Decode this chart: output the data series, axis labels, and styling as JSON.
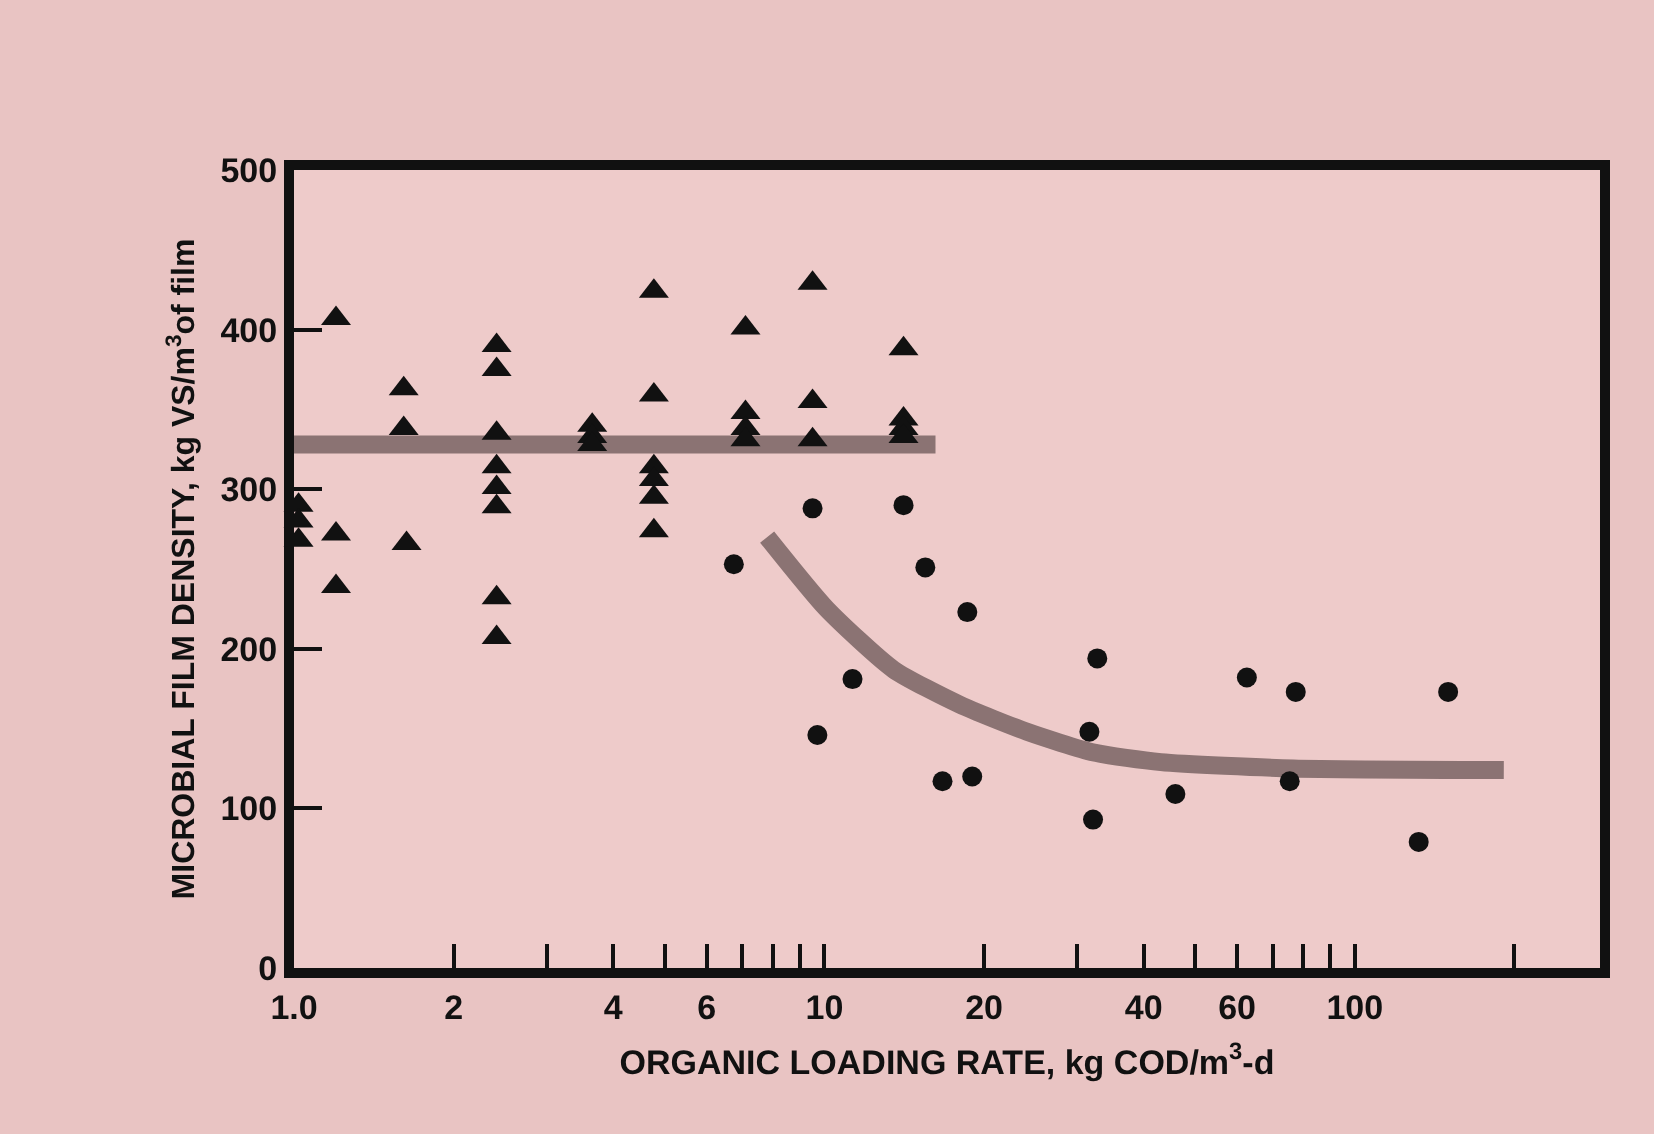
{
  "chart_data": {
    "type": "scatter",
    "xlabel": "ORGANIC LOADING RATE, kg COD/m$^{3}$-d",
    "ylabel": "MICROBIAL FILM DENSITY, kg VS/m$^{3}$of film",
    "log": "x",
    "grid": false,
    "xlim": [
      1,
      290
    ],
    "xticks": [
      {
        "value": 1,
        "label": "1.0"
      },
      2,
      {
        "value": 3,
        "label": null
      },
      4,
      {
        "value": 5,
        "label": null
      },
      6,
      {
        "value": 7,
        "label": null
      },
      {
        "value": 8,
        "label": null
      },
      {
        "value": 9,
        "label": null
      },
      10,
      20,
      {
        "value": 30,
        "label": null
      },
      40,
      {
        "value": 50,
        "label": null
      },
      60,
      {
        "value": 70,
        "label": null
      },
      {
        "value": 80,
        "label": null
      },
      {
        "value": 90,
        "label": null
      },
      100,
      {
        "value": 200,
        "label": null
      }
    ],
    "ylim": [
      0,
      500
    ],
    "yticks": [
      0,
      100,
      200,
      300,
      400,
      500
    ],
    "series": [
      {
        "marker": "triangle",
        "color": "#111111",
        "x": [
          1.02,
          1.02,
          1.02,
          1.2,
          1.2,
          1.2,
          1.61,
          1.61,
          1.63,
          2.41,
          2.41,
          2.41,
          2.41,
          2.41,
          2.41,
          2.41,
          2.41,
          3.65,
          3.65,
          3.65,
          4.77,
          4.77,
          4.77,
          4.77,
          4.77,
          4.77,
          7.1,
          7.1,
          7.1,
          7.1,
          9.5,
          9.5,
          9.5,
          14.1,
          14.1,
          14.1,
          14.1
        ],
        "values": [
          290,
          280,
          268,
          407,
          272,
          239,
          363,
          338,
          266,
          390,
          375,
          335,
          314,
          301,
          289,
          232,
          207,
          340,
          333,
          328,
          424,
          359,
          314,
          306,
          295,
          274,
          401,
          348,
          338,
          331,
          429,
          355,
          331,
          388,
          344,
          338,
          333
        ]
      },
      {
        "marker": "circle",
        "color": "#111111",
        "x": [
          6.75,
          9.5,
          9.7,
          11.3,
          14.1,
          15.5,
          16.7,
          18.6,
          19,
          31.6,
          32.1,
          32.7,
          45.9,
          62.6,
          75.4,
          77.4,
          132,
          150
        ],
        "values": [
          253,
          288,
          146,
          181,
          290,
          251,
          117,
          223,
          120,
          148,
          93,
          194,
          109,
          182,
          117,
          173,
          79,
          173
        ]
      },
      {
        "type": "line",
        "marker": "none",
        "color": "#7a6464",
        "x": [
          1,
          16.2
        ],
        "values": [
          328,
          328
        ]
      },
      {
        "type": "line",
        "marker": "none",
        "color": "#7a6464",
        "x": [
          7.8,
          10.1,
          13.5,
          18,
          24.1,
          32.2,
          43.1,
          76.6,
          191
        ],
        "values": [
          270,
          225,
          187,
          165,
          148,
          135,
          129,
          125,
          124
        ]
      }
    ]
  }
}
